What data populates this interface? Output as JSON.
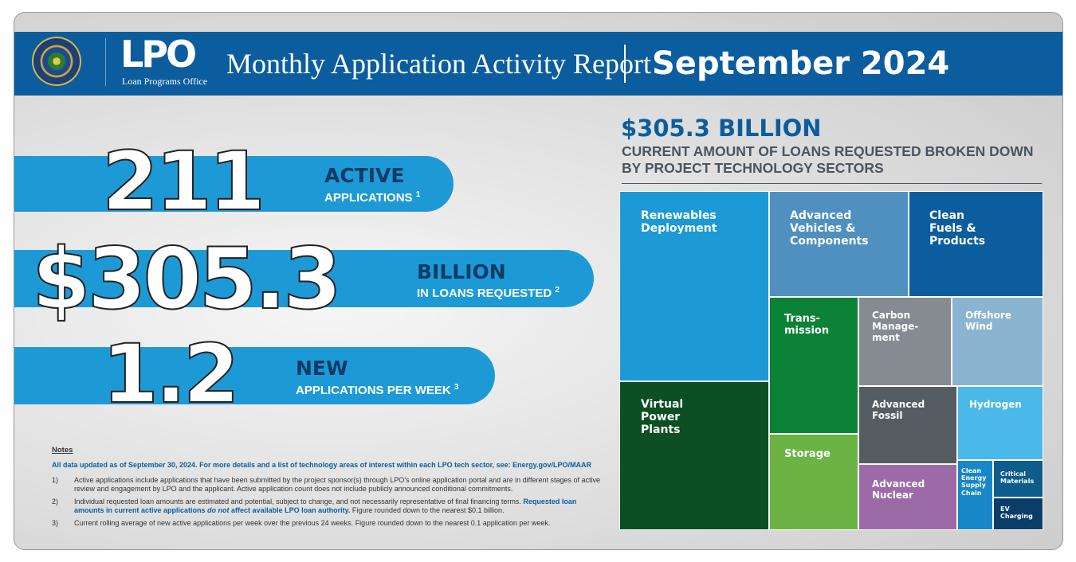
{
  "header": {
    "logo_text": "LPO",
    "logo_subtitle": "Loan Programs Office",
    "report_title": "Monthly Application Activity Report",
    "report_period": "September 2024"
  },
  "stats": [
    {
      "value": "211",
      "headline": "ACTIVE",
      "label": "APPLICATIONS",
      "footnote": "1"
    },
    {
      "value": "$305.3",
      "headline": "BILLION",
      "label": "IN LOANS REQUESTED",
      "footnote": "2"
    },
    {
      "value": "1.2",
      "headline": "NEW",
      "label": "APPLICATIONS PER WEEK",
      "footnote": "3"
    }
  ],
  "notes": {
    "title": "Notes",
    "intro": "All data updated as of September 30, 2024. For more details and a list of technology areas of interest within each LPO tech sector, see: Energy.gov/LPO/MAAR",
    "items": [
      {
        "num": "1)",
        "text": "Active applications include applications that have been submitted by the project sponsor(s) through LPO’s online application portal and are in different stages of active review and engagement by LPO and the applicant. Active application count does not include publicly announced conditional commitments."
      },
      {
        "num": "2)",
        "text_a": "Individual requested loan amounts are estimated and potential, subject to change, and not necessarily representative of final financing terms. ",
        "highlight_a": "Requested loan amounts in current active applications ",
        "highlight_em": "do not",
        "highlight_b": " affect available LPO loan authority.",
        "text_b": " Figure rounded down to the nearest $0.1 billion."
      },
      {
        "num": "3)",
        "text": "Current rolling average of new active applications per week over the previous 24 weeks. Figure rounded down to the nearest 0.1 application per week."
      }
    ]
  },
  "treemap": {
    "amount": "$305.3 BILLION",
    "description": "CURRENT AMOUNT OF LOANS REQUESTED BROKEN DOWN BY PROJECT TECHNOLOGY SECTORS",
    "sectors": [
      {
        "label": "Renewables\nDeployment",
        "color": "#1d9ad6"
      },
      {
        "label": "Virtual\nPower\nPlants",
        "color": "#0c4f24"
      },
      {
        "label": "Advanced\nVehicles &\nComponents",
        "color": "#4f90c0"
      },
      {
        "label": "Clean\nFuels &\nProducts",
        "color": "#0b5d9e"
      },
      {
        "label": "Trans-\nmission",
        "color": "#0b8235"
      },
      {
        "label": "Storage",
        "color": "#6bb345"
      },
      {
        "label": "Carbon\nManage-\nment",
        "color": "#858b90"
      },
      {
        "label": "Offshore\nWind",
        "color": "#8ab4d0"
      },
      {
        "label": "Advanced\nFossil",
        "color": "#555c62"
      },
      {
        "label": "Hydrogen",
        "color": "#4ab8e8"
      },
      {
        "label": "Advanced\nNuclear",
        "color": "#9d6aa8"
      },
      {
        "label": "Clean\nEnergy\nSupply\nChain",
        "color": "#1787c8"
      },
      {
        "label": "Critical\nMaterials",
        "color": "#0d5c8c"
      },
      {
        "label": "EV\nCharging",
        "color": "#0a3d68"
      }
    ]
  }
}
